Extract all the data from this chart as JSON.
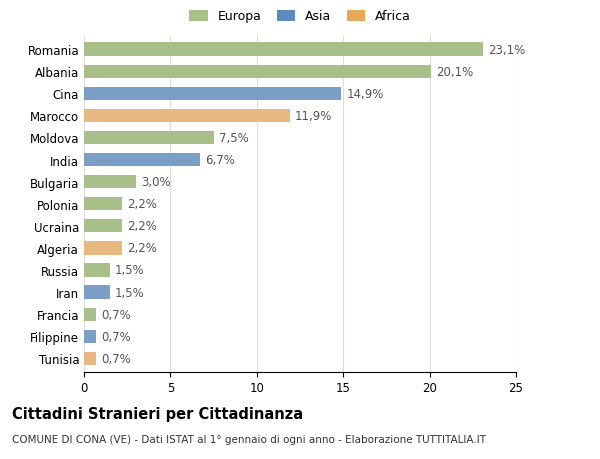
{
  "countries": [
    "Romania",
    "Albania",
    "Cina",
    "Marocco",
    "Moldova",
    "India",
    "Bulgaria",
    "Polonia",
    "Ucraina",
    "Algeria",
    "Russia",
    "Iran",
    "Francia",
    "Filippine",
    "Tunisia"
  ],
  "values": [
    23.1,
    20.1,
    14.9,
    11.9,
    7.5,
    6.7,
    3.0,
    2.2,
    2.2,
    2.2,
    1.5,
    1.5,
    0.7,
    0.7,
    0.7
  ],
  "labels": [
    "23,1%",
    "20,1%",
    "14,9%",
    "11,9%",
    "7,5%",
    "6,7%",
    "3,0%",
    "2,2%",
    "2,2%",
    "2,2%",
    "1,5%",
    "1,5%",
    "0,7%",
    "0,7%",
    "0,7%"
  ],
  "continents": [
    "Europa",
    "Europa",
    "Asia",
    "Africa",
    "Europa",
    "Asia",
    "Europa",
    "Europa",
    "Europa",
    "Africa",
    "Europa",
    "Asia",
    "Europa",
    "Asia",
    "Africa"
  ],
  "continent_colors": {
    "Europa": "#a8bf8a",
    "Asia": "#7b9ec7",
    "Africa": "#e8b882"
  },
  "legend_colors": {
    "Europa": "#a8bf8a",
    "Asia": "#5b8bbf",
    "Africa": "#e8a855"
  },
  "title": "Cittadini Stranieri per Cittadinanza",
  "subtitle": "COMUNE DI CONA (VE) - Dati ISTAT al 1° gennaio di ogni anno - Elaborazione TUTTITALIA.IT",
  "xlim": [
    0,
    25
  ],
  "background_color": "#ffffff",
  "grid_color": "#dddddd",
  "bar_height": 0.6,
  "label_fontsize": 8.5,
  "tick_fontsize": 8.5,
  "title_fontsize": 10.5,
  "subtitle_fontsize": 7.5
}
